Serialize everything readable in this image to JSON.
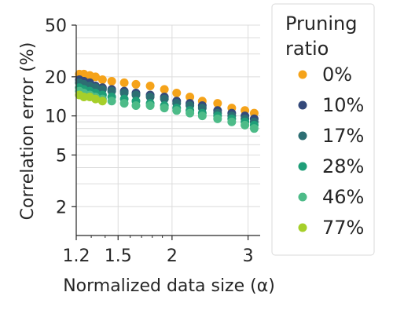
{
  "chart_data": {
    "type": "scatter",
    "xlabel": "Normalized data size (α)",
    "ylabel": "Correlation error (%)",
    "x_scale": "log",
    "y_scale": "log",
    "xlim": [
      1.2,
      3.2
    ],
    "ylim": [
      1.2,
      50
    ],
    "xticks": [
      1.2,
      1.5,
      2,
      3
    ],
    "xtick_labels": [
      "1.2",
      "1.5",
      "2",
      "3"
    ],
    "yticks": [
      2,
      5,
      10,
      20,
      50
    ],
    "ytick_labels": [
      "2",
      "5",
      "10",
      "20",
      "50"
    ],
    "grid": true,
    "legend": {
      "title": "Pruning ratio",
      "title_lines": [
        "Pruning",
        "ratio"
      ],
      "placement": "outside-right"
    },
    "series": [
      {
        "name": "0%",
        "color": "#f5a31a",
        "x": [
          1.22,
          1.25,
          1.29,
          1.33,
          1.38,
          1.45,
          1.55,
          1.65,
          1.78,
          1.92,
          2.05,
          2.2,
          2.35,
          2.55,
          2.75,
          2.95,
          3.1
        ],
        "y": [
          21,
          21,
          20.5,
          20,
          19,
          18.5,
          18,
          17.5,
          17,
          16,
          15,
          14,
          13,
          12.5,
          11.5,
          11,
          10.5
        ]
      },
      {
        "name": "10%",
        "color": "#34497a",
        "x": [
          1.22,
          1.25,
          1.29,
          1.33,
          1.38,
          1.45,
          1.55,
          1.65,
          1.78,
          1.92,
          2.05,
          2.2,
          2.35,
          2.55,
          2.75,
          2.95,
          3.1
        ],
        "y": [
          19,
          18.5,
          18,
          17,
          16.5,
          16,
          15.5,
          15,
          14.5,
          14,
          13,
          12.5,
          12,
          11,
          10.5,
          10,
          9.5
        ]
      },
      {
        "name": "17%",
        "color": "#2d6e73",
        "x": [
          1.22,
          1.25,
          1.29,
          1.33,
          1.38,
          1.45,
          1.55,
          1.65,
          1.78,
          1.92,
          2.05,
          2.2,
          2.35,
          2.55,
          2.75,
          2.95,
          3.1
        ],
        "y": [
          18,
          17.5,
          17,
          16.5,
          16,
          15.5,
          15,
          14.5,
          14,
          13.5,
          12.5,
          12,
          11.5,
          10.5,
          10,
          9.5,
          9
        ]
      },
      {
        "name": "28%",
        "color": "#1f9e78",
        "x": [
          1.22,
          1.25,
          1.29,
          1.33,
          1.38,
          1.45,
          1.55,
          1.65,
          1.78,
          1.92,
          2.05,
          2.2,
          2.35,
          2.55,
          2.75,
          2.95,
          3.1
        ],
        "y": [
          16.5,
          16,
          15.5,
          15,
          14.5,
          14,
          13.5,
          13,
          12.5,
          12,
          11.5,
          11,
          10.5,
          10,
          9.5,
          9,
          8.5
        ]
      },
      {
        "name": "46%",
        "color": "#4dbb88",
        "x": [
          1.22,
          1.25,
          1.29,
          1.33,
          1.38,
          1.45,
          1.55,
          1.65,
          1.78,
          1.92,
          2.05,
          2.2,
          2.35,
          2.55,
          2.75,
          2.95,
          3.1
        ],
        "y": [
          15.5,
          15,
          14.5,
          14,
          13.5,
          13,
          12.5,
          12,
          12,
          11.5,
          11,
          10.5,
          10,
          9.5,
          9,
          8.5,
          8
        ]
      },
      {
        "name": "77%",
        "color": "#a6cf2a",
        "x": [
          1.22,
          1.25,
          1.29,
          1.33,
          1.38
        ],
        "y": [
          14.5,
          14,
          14,
          13.5,
          13
        ]
      }
    ]
  }
}
